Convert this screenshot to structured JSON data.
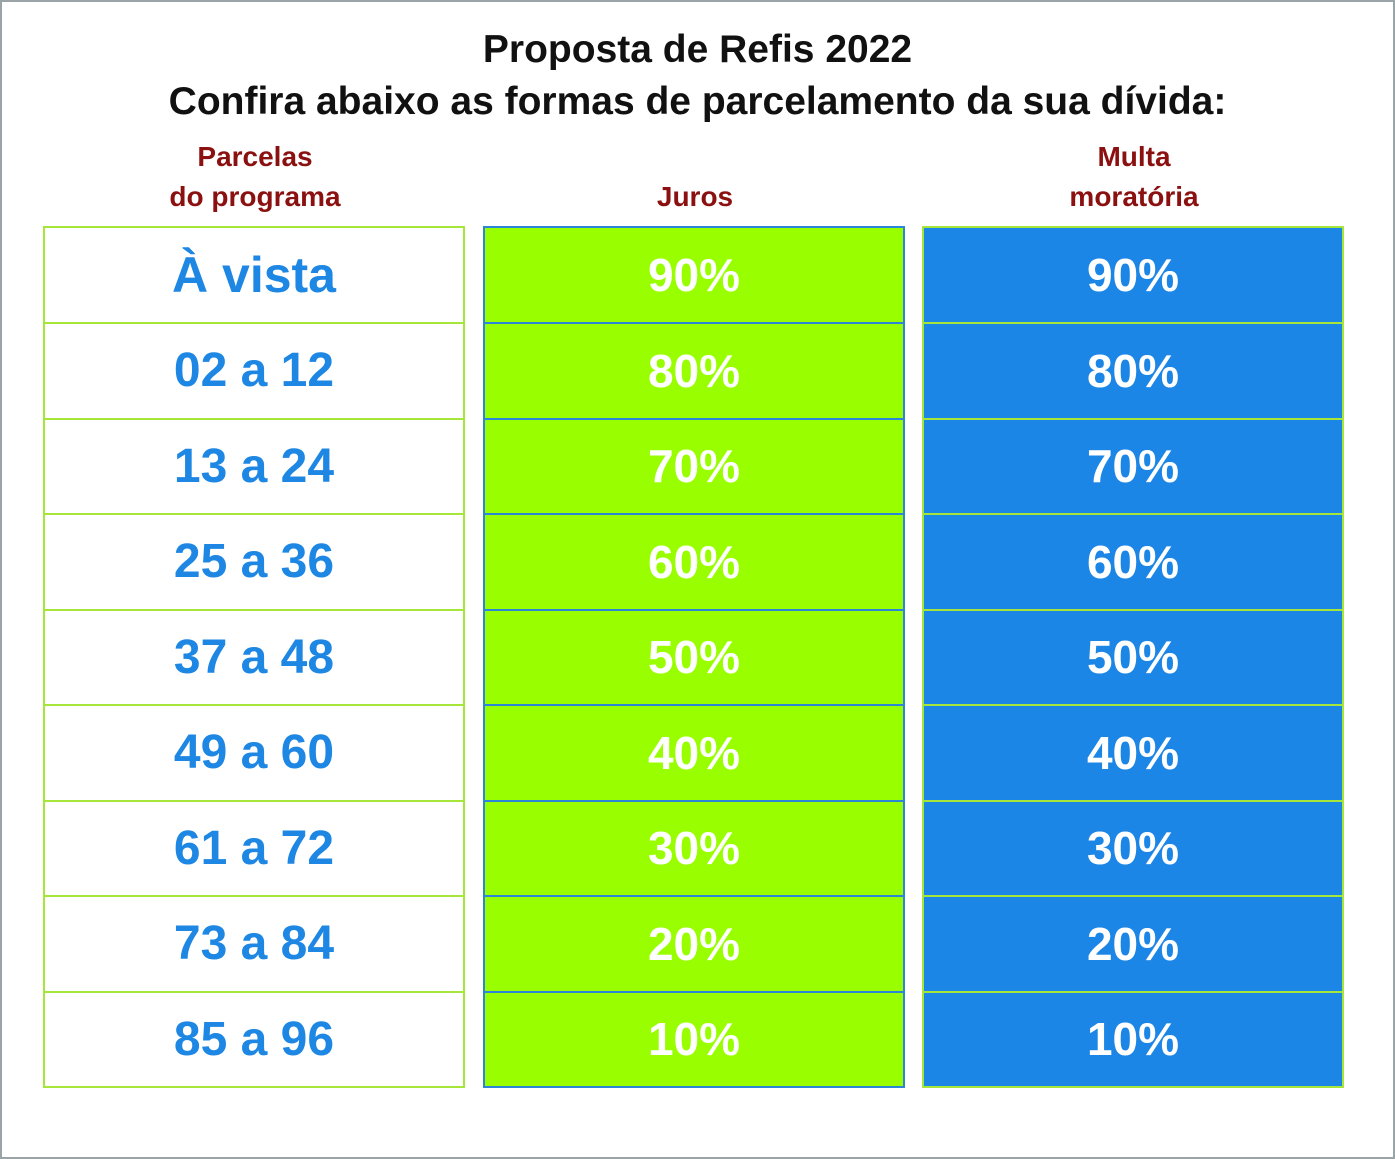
{
  "title": {
    "line1": "Proposta de Refis 2022",
    "line2": "Confira abaixo as formas de parcelamento da sua dívida:"
  },
  "headers": {
    "parcelas": "Parcelas\ndo programa",
    "juros": "Juros",
    "multa": "Multa\nmoratória"
  },
  "colors": {
    "header_text": "#8b1010",
    "parcelas_text": "#1e87e3",
    "juros_bg": "#99ff00",
    "multa_bg": "#1c86e6",
    "border_green": "#a6e63a",
    "border_blue": "#2b86d8"
  },
  "rows": [
    {
      "parcelas": "À vista",
      "juros": "90%",
      "multa": "90%"
    },
    {
      "parcelas": "02 a 12",
      "juros": "80%",
      "multa": "80%"
    },
    {
      "parcelas": "13 a 24",
      "juros": "70%",
      "multa": "70%"
    },
    {
      "parcelas": "25 a 36",
      "juros": "60%",
      "multa": "60%"
    },
    {
      "parcelas": "37 a 48",
      "juros": "50%",
      "multa": "50%"
    },
    {
      "parcelas": "49 a 60",
      "juros": "40%",
      "multa": "40%"
    },
    {
      "parcelas": "61 a 72",
      "juros": "30%",
      "multa": "30%"
    },
    {
      "parcelas": "73 a 84",
      "juros": "20%",
      "multa": "20%"
    },
    {
      "parcelas": "85 a 96",
      "juros": "10%",
      "multa": "10%"
    }
  ]
}
